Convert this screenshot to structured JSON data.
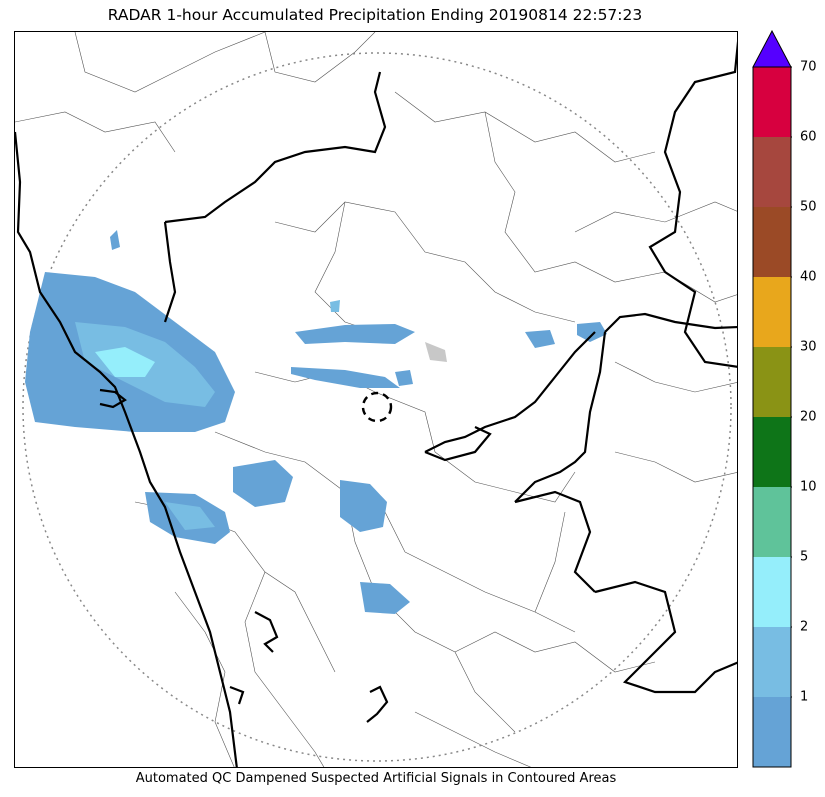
{
  "title": "RADAR 1-hour Accumulated Precipitation Ending 20190814 22:57:23",
  "caption": "Automated QC Dampened Suspected Artificial Signals in Contoured Areas",
  "colorbar": {
    "extend_color": "#5500ff",
    "bins": [
      {
        "color": "#65a3d6"
      },
      {
        "color": "#78bde3"
      },
      {
        "color": "#95eefb"
      },
      {
        "color": "#5fc39a"
      },
      {
        "color": "#0e7518"
      },
      {
        "color": "#8a9315"
      },
      {
        "color": "#e8a71c"
      },
      {
        "color": "#9b4a26"
      },
      {
        "color": "#a6473e"
      },
      {
        "color": "#d7003f"
      }
    ],
    "labels": [
      "1",
      "2",
      "5",
      "10",
      "20",
      "30",
      "40",
      "50",
      "60",
      "70"
    ]
  }
}
